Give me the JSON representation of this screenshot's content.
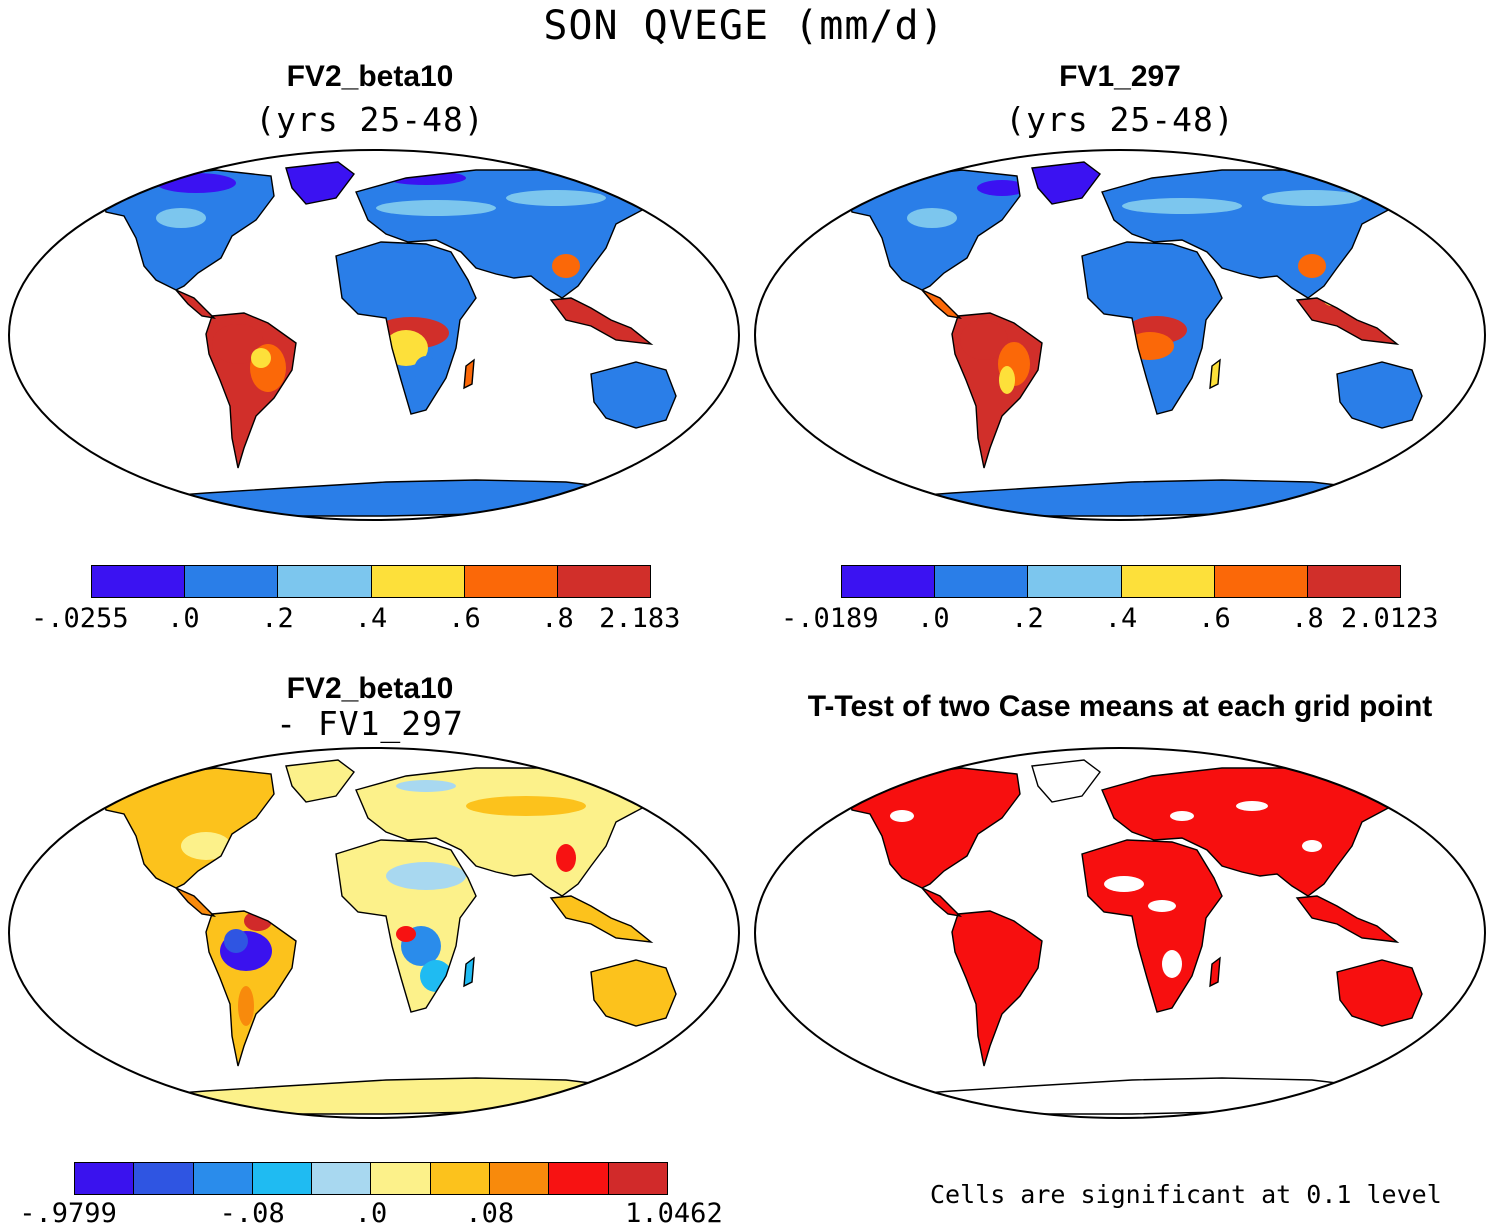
{
  "title": "SON QVEGE (mm/d)",
  "panels": [
    {
      "title": "FV2_beta10",
      "subtitle": "(yrs 25-48)",
      "colorbar": {
        "colors": [
          "#3b12f2",
          "#2a7ee8",
          "#7cc6ee",
          "#fde03a",
          "#fb6808",
          "#d12f2a"
        ],
        "ticks": [
          "-.0255",
          ".0",
          ".2",
          ".4",
          ".6",
          ".8",
          "2.183"
        ]
      }
    },
    {
      "title": "FV1_297",
      "subtitle": "(yrs 25-48)",
      "colorbar": {
        "colors": [
          "#3b12f2",
          "#2a7ee8",
          "#7cc6ee",
          "#fde03a",
          "#fb6808",
          "#d12f2a"
        ],
        "ticks": [
          "-.0189",
          ".0",
          ".2",
          ".4",
          ".6",
          ".8",
          "2.0123"
        ]
      }
    },
    {
      "title": "FV2_beta10",
      "subtitle": "- FV1_297",
      "colorbar": {
        "colors": [
          "#3a12ee",
          "#2f55e2",
          "#2a8ceb",
          "#1fbbf2",
          "#a8d8f0",
          "#fcf18a",
          "#fcc21c",
          "#f88a0c",
          "#f71212",
          "#d12a2a"
        ],
        "ticks": [
          "-.9799",
          "-.08",
          ".0",
          ".08",
          "1.0462"
        ]
      }
    },
    {
      "title": "T-Test of two Case means at each grid point",
      "note": "Cells are significant at 0.1 level",
      "significant_color": "#f70f0f"
    }
  ]
}
